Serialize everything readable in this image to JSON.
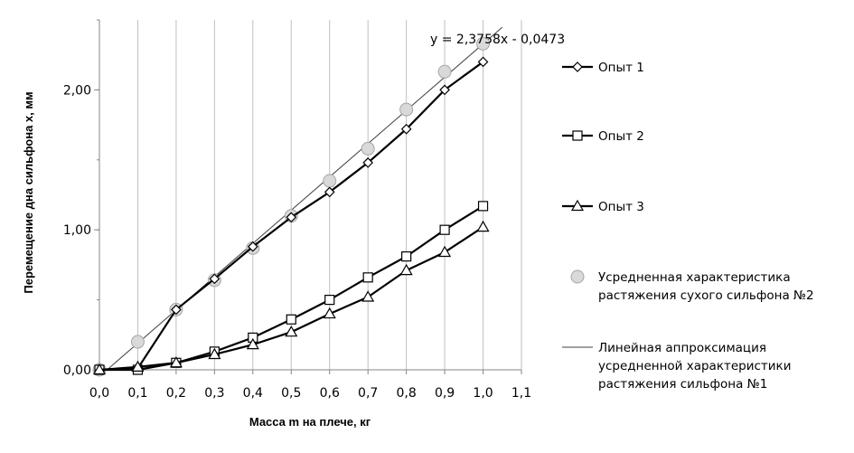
{
  "chart_data": {
    "type": "line",
    "xlabel": "Масса m на плече, кг",
    "ylabel": "Перемещение дна сильфона x, мм",
    "xlim": [
      0,
      1.1
    ],
    "ylim": [
      0,
      2.5
    ],
    "x_ticks": [
      {
        "value": 0.0,
        "label": "0,0"
      },
      {
        "value": 0.1,
        "label": "0,1"
      },
      {
        "value": 0.2,
        "label": "0,2"
      },
      {
        "value": 0.3,
        "label": "0,3"
      },
      {
        "value": 0.4,
        "label": "0,4"
      },
      {
        "value": 0.5,
        "label": "0,5"
      },
      {
        "value": 0.6,
        "label": "0,6"
      },
      {
        "value": 0.7,
        "label": "0,7"
      },
      {
        "value": 0.8,
        "label": "0,8"
      },
      {
        "value": 0.9,
        "label": "0,9"
      },
      {
        "value": 1.0,
        "label": "1,0"
      },
      {
        "value": 1.1,
        "label": "1,1"
      }
    ],
    "y_ticks": [
      {
        "value": 0,
        "label": "0,00"
      },
      {
        "value": 1,
        "label": "1,00"
      },
      {
        "value": 2,
        "label": "2,00"
      }
    ],
    "grid": "vertical",
    "legend_position": "right",
    "annotation": "y = 2,3758x - 0,0473",
    "x": [
      0,
      0.1,
      0.2,
      0.3,
      0.4,
      0.5,
      0.6,
      0.7,
      0.8,
      0.9,
      1.0
    ],
    "series": [
      {
        "name": "Опыт 1",
        "marker": "diamond",
        "color": "#000000",
        "values": [
          0,
          0.01,
          0.43,
          0.65,
          0.88,
          1.09,
          1.27,
          1.48,
          1.72,
          2.0,
          2.2
        ]
      },
      {
        "name": "Опыт 2",
        "marker": "square",
        "color": "#000000",
        "values": [
          0,
          0.0,
          0.05,
          0.13,
          0.23,
          0.36,
          0.5,
          0.66,
          0.81,
          1.0,
          1.17
        ]
      },
      {
        "name": "Опыт 3",
        "marker": "triangle",
        "color": "#000000",
        "values": [
          0,
          0.02,
          0.05,
          0.11,
          0.18,
          0.27,
          0.4,
          0.52,
          0.71,
          0.84,
          1.02
        ]
      },
      {
        "name": "Усредненная характеристика растяжения сухого сильфона №2",
        "marker": "circle",
        "line": false,
        "color": "#bfbfbf",
        "values": [
          0,
          0.2,
          0.43,
          0.64,
          0.87,
          1.1,
          1.35,
          1.58,
          1.86,
          2.13,
          2.33
        ]
      },
      {
        "name": "Линейная аппроксимация усредненной характеристики растяжения сильфона №1",
        "type": "trendline",
        "marker": "none",
        "color": "#404040",
        "slope": 2.3758,
        "intercept": -0.0473,
        "x_range": [
          0.02,
          1.05
        ]
      }
    ]
  },
  "legend": [
    {
      "marker": "diamond",
      "line": true,
      "lines": [
        "Опыт 1"
      ]
    },
    {
      "marker": "square",
      "line": true,
      "lines": [
        "Опыт 2"
      ]
    },
    {
      "marker": "triangle",
      "line": true,
      "lines": [
        "Опыт 3"
      ]
    },
    {
      "marker": "circle",
      "line": false,
      "lines": [
        "Усредненная характеристика",
        "растяжения сухого сильфона №2"
      ]
    },
    {
      "marker": "none",
      "line": true,
      "lines": [
        "Линейная аппроксимация",
        "усредненной характеристики",
        "растяжения сильфона №1"
      ]
    }
  ]
}
